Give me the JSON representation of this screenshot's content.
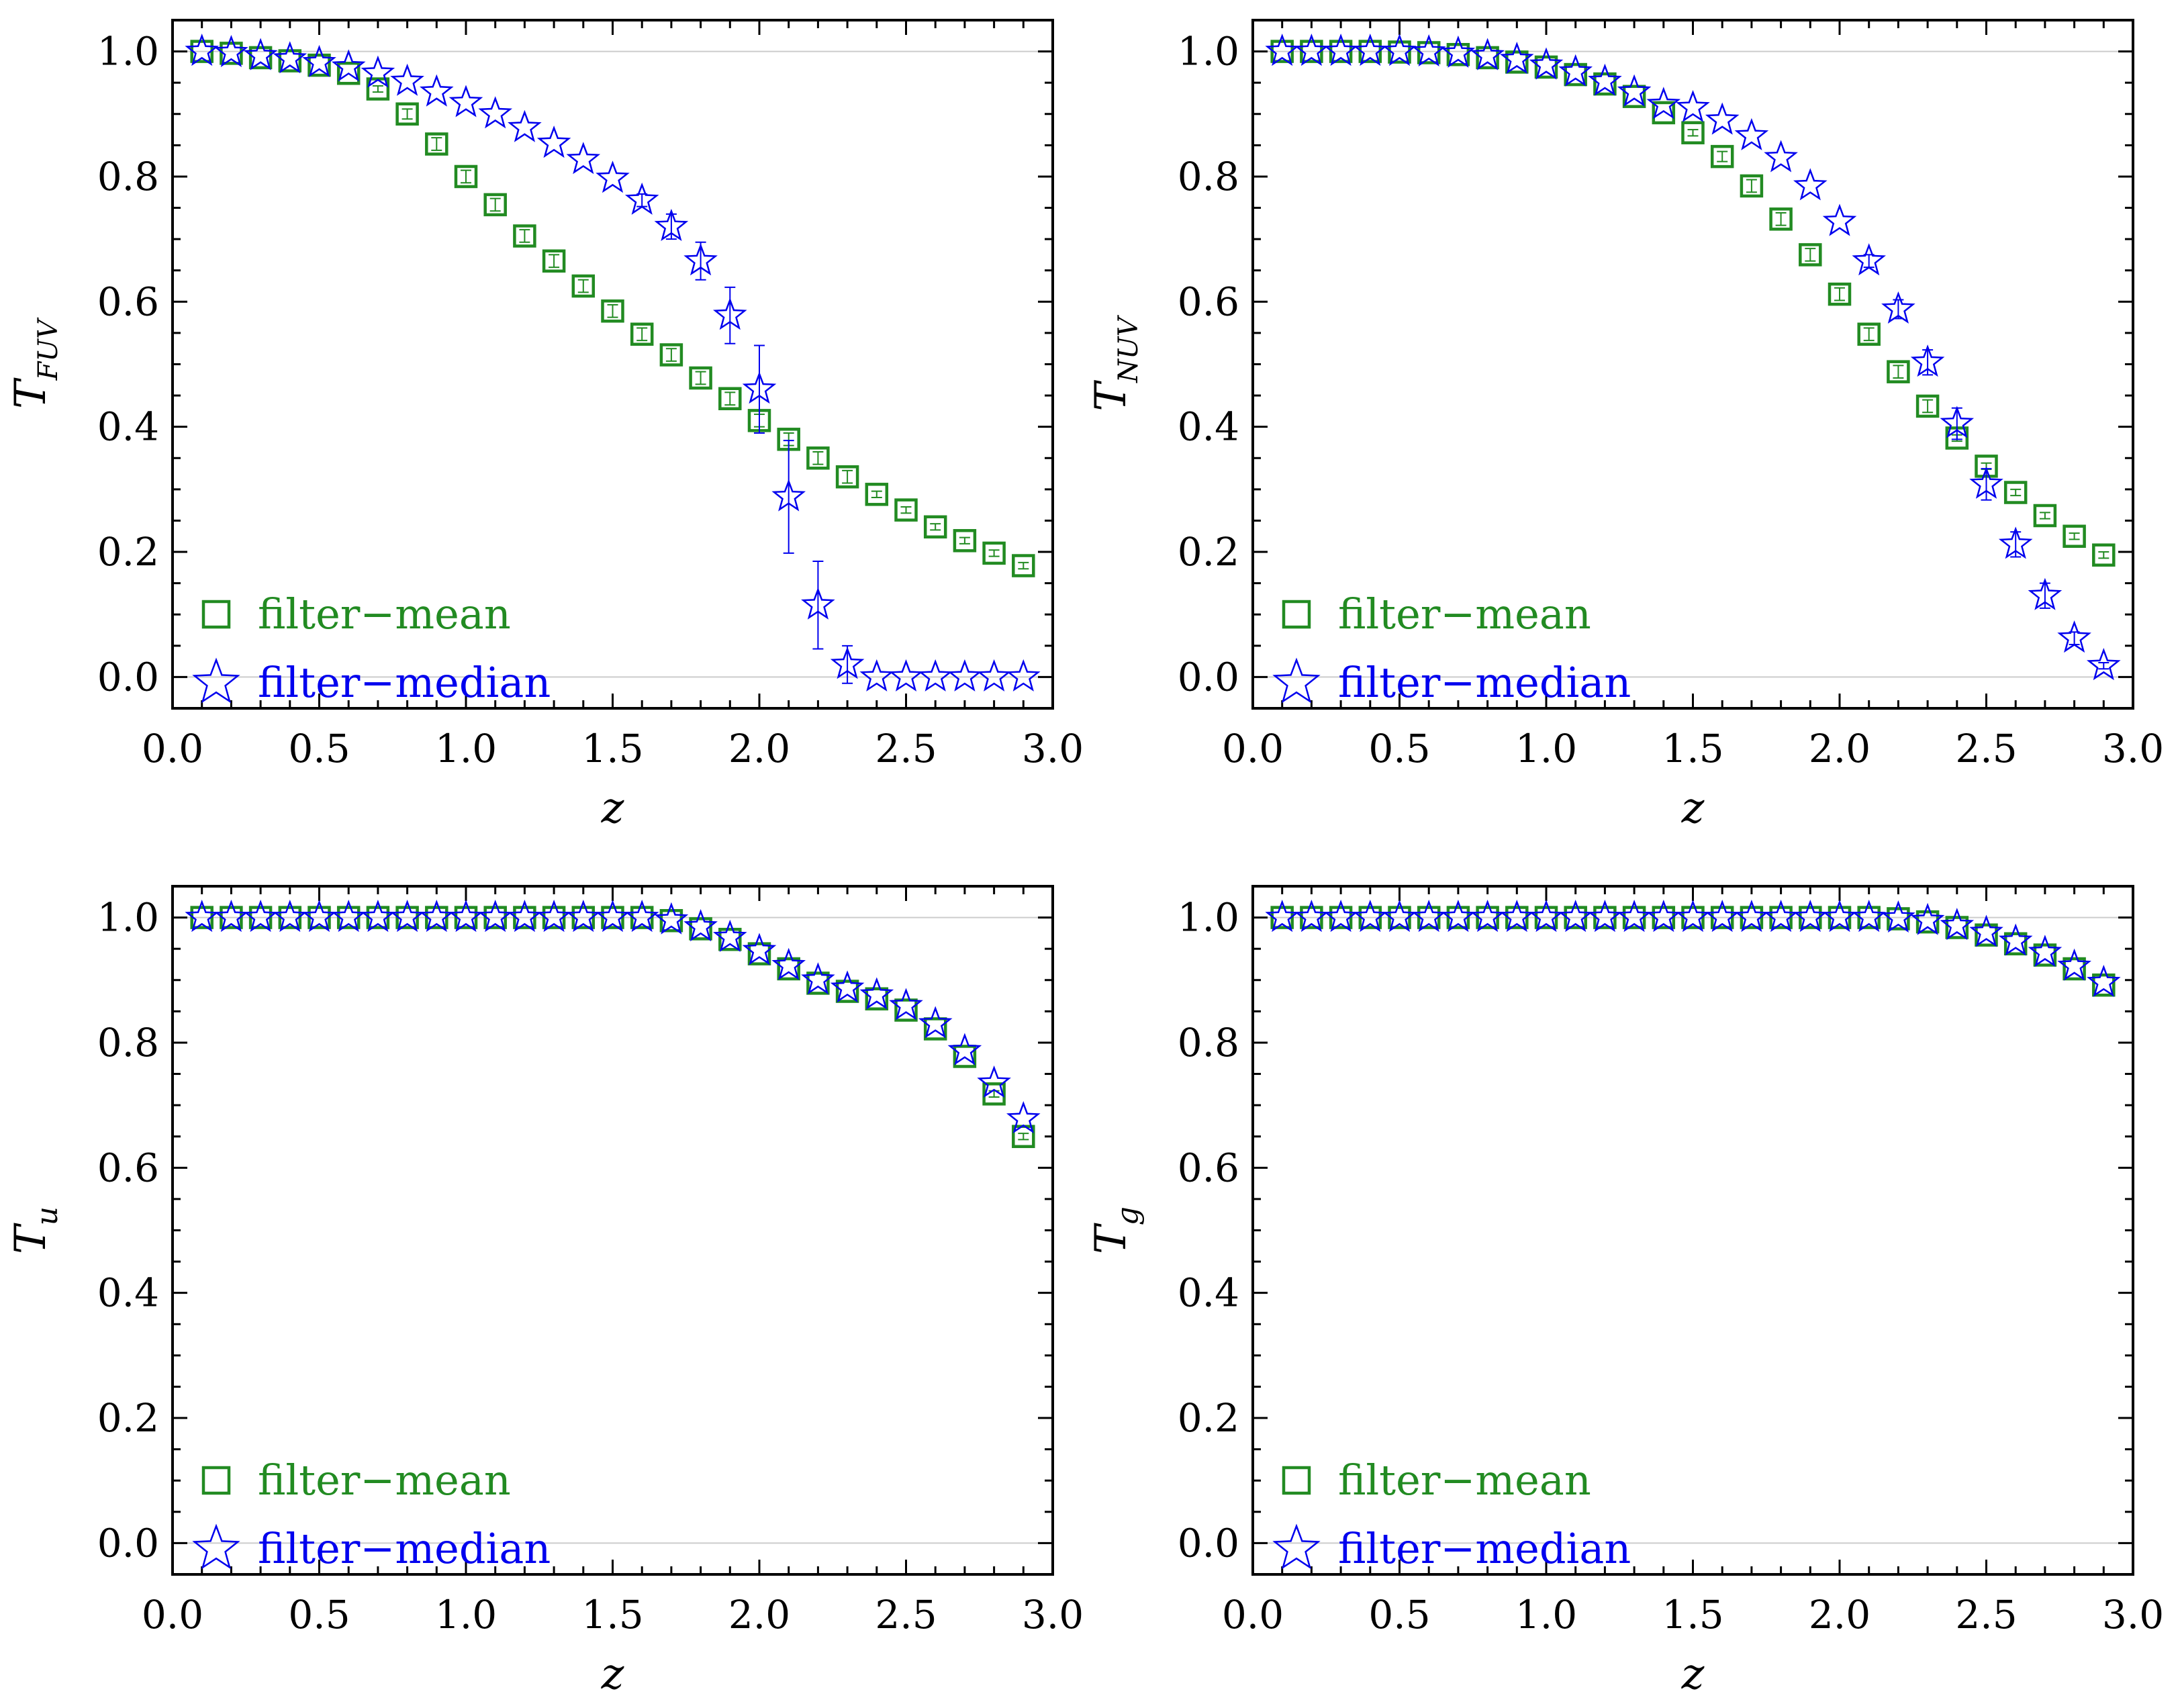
{
  "colors": {
    "mean": "#228b22",
    "median": "#0000ee",
    "axis": "#000000",
    "refline": "#cccccc"
  },
  "legend": {
    "mean_label": "filter−mean",
    "median_label": "filter−median",
    "mean_marker": "square-icon",
    "median_marker": "star-icon"
  },
  "chart_data": [
    {
      "type": "scatter",
      "ylabel_main": "T",
      "ylabel_sub": "FUV",
      "xlabel": "z",
      "xlim": [
        0,
        3
      ],
      "ylim": [
        -0.05,
        1.05
      ],
      "xticks": [
        "0.0",
        "0.5",
        "1.0",
        "1.5",
        "2.0",
        "2.5",
        "3.0"
      ],
      "yticks": [
        "0.0",
        "0.2",
        "0.4",
        "0.6",
        "0.8",
        "1.0"
      ],
      "x": [
        0.1,
        0.2,
        0.3,
        0.4,
        0.5,
        0.6,
        0.7,
        0.8,
        0.9,
        1.0,
        1.1,
        1.2,
        1.3,
        1.4,
        1.5,
        1.6,
        1.7,
        1.8,
        1.9,
        2.0,
        2.1,
        2.2,
        2.3,
        2.4,
        2.5,
        2.6,
        2.7,
        2.8,
        2.9
      ],
      "series": [
        {
          "name": "filter−mean",
          "marker": "square",
          "values": [
            1.0,
            0.997,
            0.99,
            0.985,
            0.978,
            0.965,
            0.94,
            0.9,
            0.852,
            0.8,
            0.755,
            0.705,
            0.665,
            0.625,
            0.585,
            0.548,
            0.515,
            0.478,
            0.445,
            0.41,
            0.38,
            0.35,
            0.32,
            0.292,
            0.267,
            0.24,
            0.218,
            0.198,
            0.178
          ],
          "errors": [
            0,
            0,
            0,
            0,
            0,
            0,
            0.005,
            0.008,
            0.01,
            0.01,
            0.01,
            0.01,
            0.01,
            0.01,
            0.01,
            0.01,
            0.01,
            0.01,
            0.01,
            0.01,
            0.01,
            0.01,
            0.01,
            0.005,
            0.005,
            0.005,
            0.005,
            0.005,
            0.005
          ]
        },
        {
          "name": "filter−median",
          "marker": "star",
          "values": [
            1.0,
            0.998,
            0.993,
            0.988,
            0.982,
            0.975,
            0.965,
            0.952,
            0.935,
            0.918,
            0.9,
            0.878,
            0.853,
            0.827,
            0.797,
            0.762,
            0.72,
            0.665,
            0.578,
            0.46,
            0.288,
            0.115,
            0.02,
            0.0,
            0.0,
            0.0,
            0.0,
            0.0,
            0.0
          ],
          "errors": [
            0,
            0,
            0,
            0,
            0,
            0,
            0,
            0,
            0,
            0,
            0,
            0,
            0,
            0,
            0,
            0.01,
            0.02,
            0.03,
            0.045,
            0.07,
            0.09,
            0.07,
            0.03,
            0,
            0,
            0,
            0,
            0,
            0
          ]
        }
      ]
    },
    {
      "type": "scatter",
      "ylabel_main": "T",
      "ylabel_sub": "NUV",
      "xlabel": "z",
      "xlim": [
        0,
        3
      ],
      "ylim": [
        -0.05,
        1.05
      ],
      "xticks": [
        "0.0",
        "0.5",
        "1.0",
        "1.5",
        "2.0",
        "2.5",
        "3.0"
      ],
      "yticks": [
        "0.0",
        "0.2",
        "0.4",
        "0.6",
        "0.8",
        "1.0"
      ],
      "x": [
        0.1,
        0.2,
        0.3,
        0.4,
        0.5,
        0.6,
        0.7,
        0.8,
        0.9,
        1.0,
        1.1,
        1.2,
        1.3,
        1.4,
        1.5,
        1.6,
        1.7,
        1.8,
        1.9,
        2.0,
        2.1,
        2.2,
        2.3,
        2.4,
        2.5,
        2.6,
        2.7,
        2.8,
        2.9
      ],
      "series": [
        {
          "name": "filter−mean",
          "marker": "square",
          "values": [
            1.0,
            1.0,
            1.0,
            1.0,
            0.999,
            0.998,
            0.995,
            0.99,
            0.983,
            0.975,
            0.963,
            0.948,
            0.928,
            0.902,
            0.87,
            0.832,
            0.785,
            0.732,
            0.675,
            0.612,
            0.548,
            0.488,
            0.433,
            0.382,
            0.337,
            0.295,
            0.258,
            0.225,
            0.195
          ],
          "errors": [
            0,
            0,
            0,
            0,
            0,
            0,
            0,
            0,
            0,
            0,
            0,
            0,
            0,
            0,
            0.005,
            0.008,
            0.01,
            0.01,
            0.01,
            0.01,
            0.01,
            0.01,
            0.01,
            0.005,
            0.005,
            0.005,
            0.005,
            0.005,
            0.005
          ]
        },
        {
          "name": "filter−median",
          "marker": "star",
          "values": [
            1.0,
            1.0,
            1.0,
            1.0,
            1.0,
            0.999,
            0.997,
            0.993,
            0.987,
            0.978,
            0.967,
            0.952,
            0.935,
            0.915,
            0.91,
            0.89,
            0.865,
            0.83,
            0.785,
            0.728,
            0.665,
            0.588,
            0.503,
            0.405,
            0.308,
            0.212,
            0.13,
            0.062,
            0.018
          ],
          "errors": [
            0,
            0,
            0,
            0,
            0,
            0,
            0,
            0,
            0,
            0,
            0,
            0,
            0,
            0,
            0,
            0,
            0,
            0,
            0,
            0,
            0.01,
            0.015,
            0.02,
            0.025,
            0.025,
            0.02,
            0.02,
            0.01,
            0.005
          ]
        }
      ]
    },
    {
      "type": "scatter",
      "ylabel_main": "T",
      "ylabel_sub": "u",
      "xlabel": "z",
      "xlim": [
        0,
        3
      ],
      "ylim": [
        -0.05,
        1.05
      ],
      "xticks": [
        "0.0",
        "0.5",
        "1.0",
        "1.5",
        "2.0",
        "2.5",
        "3.0"
      ],
      "yticks": [
        "0.0",
        "0.2",
        "0.4",
        "0.6",
        "0.8",
        "1.0"
      ],
      "x": [
        0.1,
        0.2,
        0.3,
        0.4,
        0.5,
        0.6,
        0.7,
        0.8,
        0.9,
        1.0,
        1.1,
        1.2,
        1.3,
        1.4,
        1.5,
        1.6,
        1.7,
        1.8,
        1.9,
        2.0,
        2.1,
        2.2,
        2.3,
        2.4,
        2.5,
        2.6,
        2.7,
        2.8,
        2.9
      ],
      "series": [
        {
          "name": "filter−mean",
          "marker": "square",
          "values": [
            1.0,
            1.0,
            1.0,
            1.0,
            1.0,
            1.0,
            1.0,
            1.0,
            1.0,
            1.0,
            1.0,
            1.0,
            1.0,
            1.0,
            1.0,
            1.0,
            0.995,
            0.982,
            0.965,
            0.942,
            0.918,
            0.895,
            0.882,
            0.87,
            0.852,
            0.822,
            0.778,
            0.718,
            0.65
          ],
          "errors": [
            0,
            0,
            0,
            0,
            0,
            0,
            0,
            0,
            0,
            0,
            0,
            0,
            0,
            0,
            0,
            0,
            0,
            0,
            0,
            0,
            0,
            0,
            0,
            0,
            0,
            0,
            0,
            0.005,
            0.005
          ]
        },
        {
          "name": "filter−median",
          "marker": "star",
          "values": [
            1.0,
            1.0,
            1.0,
            1.0,
            1.0,
            1.0,
            1.0,
            1.0,
            1.0,
            1.0,
            1.0,
            1.0,
            1.0,
            1.0,
            1.0,
            1.0,
            0.996,
            0.985,
            0.968,
            0.947,
            0.923,
            0.9,
            0.887,
            0.876,
            0.859,
            0.83,
            0.787,
            0.735,
            0.678
          ],
          "errors": [
            0,
            0,
            0,
            0,
            0,
            0,
            0,
            0,
            0,
            0,
            0,
            0,
            0,
            0,
            0,
            0,
            0,
            0,
            0,
            0,
            0,
            0,
            0,
            0,
            0,
            0,
            0,
            0,
            0
          ]
        }
      ]
    },
    {
      "type": "scatter",
      "ylabel_main": "T",
      "ylabel_sub": "g",
      "xlabel": "z",
      "xlim": [
        0,
        3
      ],
      "ylim": [
        -0.05,
        1.05
      ],
      "xticks": [
        "0.0",
        "0.5",
        "1.0",
        "1.5",
        "2.0",
        "2.5",
        "3.0"
      ],
      "yticks": [
        "0.0",
        "0.2",
        "0.4",
        "0.6",
        "0.8",
        "1.0"
      ],
      "x": [
        0.1,
        0.2,
        0.3,
        0.4,
        0.5,
        0.6,
        0.7,
        0.8,
        0.9,
        1.0,
        1.1,
        1.2,
        1.3,
        1.4,
        1.5,
        1.6,
        1.7,
        1.8,
        1.9,
        2.0,
        2.1,
        2.2,
        2.3,
        2.4,
        2.5,
        2.6,
        2.7,
        2.8,
        2.9
      ],
      "series": [
        {
          "name": "filter−mean",
          "marker": "square",
          "values": [
            1.0,
            1.0,
            1.0,
            1.0,
            1.0,
            1.0,
            1.0,
            1.0,
            1.0,
            1.0,
            1.0,
            1.0,
            1.0,
            1.0,
            1.0,
            1.0,
            1.0,
            1.0,
            1.0,
            1.0,
            1.0,
            0.998,
            0.993,
            0.984,
            0.972,
            0.958,
            0.94,
            0.918,
            0.892
          ],
          "errors": [
            0,
            0,
            0,
            0,
            0,
            0,
            0,
            0,
            0,
            0,
            0,
            0,
            0,
            0,
            0,
            0,
            0,
            0,
            0,
            0,
            0,
            0,
            0,
            0,
            0,
            0,
            0,
            0,
            0
          ]
        },
        {
          "name": "filter−median",
          "marker": "star",
          "values": [
            1.0,
            1.0,
            1.0,
            1.0,
            1.0,
            1.0,
            1.0,
            1.0,
            1.0,
            1.0,
            1.0,
            1.0,
            1.0,
            1.0,
            1.0,
            1.0,
            1.0,
            1.0,
            1.0,
            1.0,
            1.0,
            0.999,
            0.995,
            0.987,
            0.976,
            0.962,
            0.944,
            0.922,
            0.896
          ],
          "errors": [
            0,
            0,
            0,
            0,
            0,
            0,
            0,
            0,
            0,
            0,
            0,
            0,
            0,
            0,
            0,
            0,
            0,
            0,
            0,
            0,
            0,
            0,
            0,
            0,
            0,
            0,
            0,
            0,
            0
          ]
        }
      ]
    }
  ]
}
